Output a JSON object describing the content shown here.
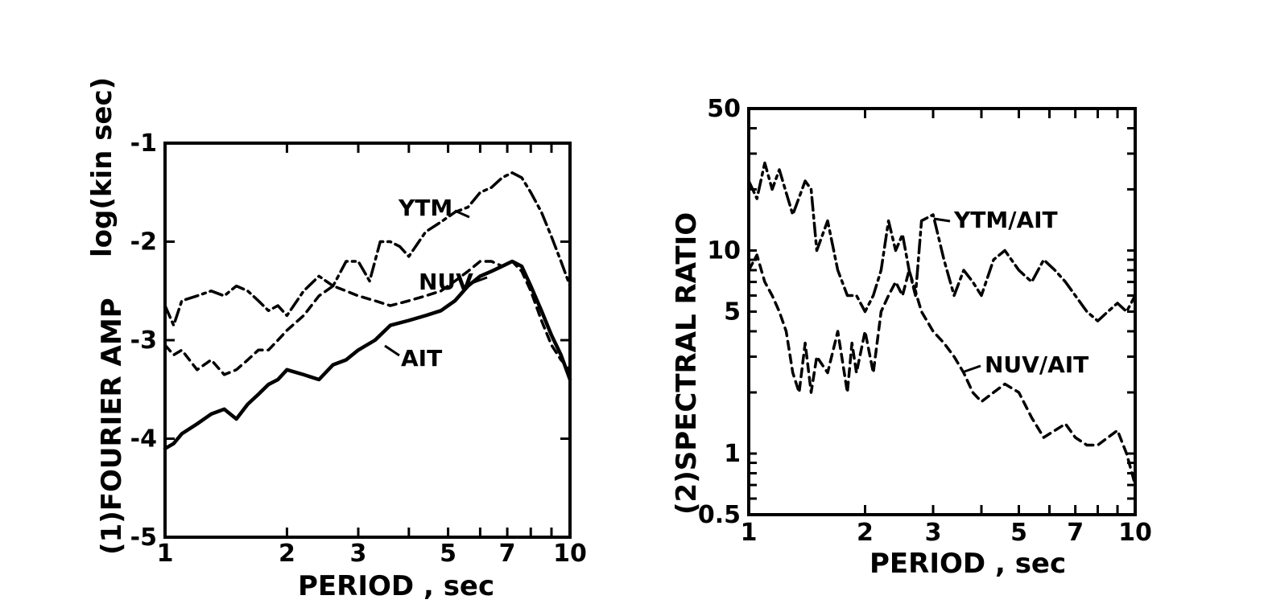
{
  "chart_data": [
    {
      "type": "line",
      "panel_label": "(1)",
      "xlabel": "PERIOD , sec",
      "ylabel": "FOURIER AMP",
      "yunit": "log(kin sec)",
      "xscale": "log",
      "xlim": [
        1,
        10
      ],
      "ylim": [
        -5,
        -1
      ],
      "xticks": [
        1,
        2,
        3,
        5,
        7,
        10
      ],
      "xtick_labels": [
        "1",
        "2",
        "3",
        "5",
        "7",
        "10"
      ],
      "yticks": [
        -5,
        -4,
        -3,
        -2,
        -1
      ],
      "ytick_labels": [
        "-5",
        "-4",
        "-3",
        "-2",
        "-1"
      ],
      "series": [
        {
          "name": "YTM",
          "style": "dash-dot",
          "x": [
            1,
            1.05,
            1.1,
            1.2,
            1.3,
            1.4,
            1.5,
            1.6,
            1.7,
            1.8,
            1.9,
            2.0,
            2.2,
            2.4,
            2.6,
            2.8,
            3.0,
            3.2,
            3.4,
            3.6,
            3.8,
            4.0,
            4.4,
            4.8,
            5.2,
            5.6,
            6.0,
            6.4,
            6.8,
            7.2,
            7.6,
            8.0,
            8.5,
            9.0,
            9.5,
            10
          ],
          "values": [
            -2.65,
            -2.85,
            -2.6,
            -2.55,
            -2.5,
            -2.55,
            -2.45,
            -2.5,
            -2.6,
            -2.7,
            -2.65,
            -2.75,
            -2.5,
            -2.35,
            -2.45,
            -2.2,
            -2.2,
            -2.4,
            -2.0,
            -2.0,
            -2.05,
            -2.15,
            -1.9,
            -1.8,
            -1.7,
            -1.65,
            -1.5,
            -1.45,
            -1.35,
            -1.3,
            -1.35,
            -1.5,
            -1.7,
            -1.95,
            -2.2,
            -2.45
          ]
        },
        {
          "name": "NUV",
          "style": "dashed",
          "x": [
            1,
            1.05,
            1.1,
            1.2,
            1.3,
            1.4,
            1.5,
            1.6,
            1.7,
            1.8,
            1.9,
            2.0,
            2.2,
            2.4,
            2.6,
            2.8,
            3.0,
            3.3,
            3.6,
            4.0,
            4.4,
            4.8,
            5.2,
            5.6,
            6.0,
            6.4,
            6.8,
            7.2,
            7.6,
            8.0,
            8.5,
            9.0,
            9.5,
            10
          ],
          "values": [
            -3.05,
            -3.15,
            -3.1,
            -3.3,
            -3.2,
            -3.35,
            -3.3,
            -3.2,
            -3.1,
            -3.1,
            -3.0,
            -2.9,
            -2.75,
            -2.55,
            -2.45,
            -2.5,
            -2.55,
            -2.6,
            -2.65,
            -2.6,
            -2.55,
            -2.5,
            -2.4,
            -2.3,
            -2.2,
            -2.2,
            -2.25,
            -2.2,
            -2.3,
            -2.5,
            -2.8,
            -3.05,
            -3.2,
            -3.3
          ]
        },
        {
          "name": "AIT",
          "style": "solid",
          "x": [
            1,
            1.05,
            1.1,
            1.2,
            1.3,
            1.4,
            1.5,
            1.6,
            1.7,
            1.8,
            1.9,
            2.0,
            2.2,
            2.4,
            2.6,
            2.8,
            3.0,
            3.3,
            3.6,
            4.0,
            4.4,
            4.8,
            5.2,
            5.6,
            6.0,
            6.4,
            6.8,
            7.2,
            7.6,
            8.0,
            8.5,
            9.0,
            9.5,
            10
          ],
          "values": [
            -4.1,
            -4.05,
            -3.95,
            -3.85,
            -3.75,
            -3.7,
            -3.8,
            -3.65,
            -3.55,
            -3.45,
            -3.4,
            -3.3,
            -3.35,
            -3.4,
            -3.25,
            -3.2,
            -3.1,
            -3.0,
            -2.85,
            -2.8,
            -2.75,
            -2.7,
            -2.6,
            -2.45,
            -2.35,
            -2.3,
            -2.25,
            -2.2,
            -2.25,
            -2.45,
            -2.7,
            -2.95,
            -3.15,
            -3.4
          ]
        }
      ]
    },
    {
      "type": "line",
      "panel_label": "(2)",
      "xlabel": "PERIOD , sec",
      "ylabel": "SPECTRAL  RATIO",
      "xscale": "log",
      "yscale": "log",
      "xlim": [
        1,
        10
      ],
      "ylim": [
        0.5,
        50
      ],
      "xticks": [
        1,
        2,
        3,
        5,
        7,
        10
      ],
      "xtick_labels": [
        "1",
        "2",
        "3",
        "5",
        "7",
        "10"
      ],
      "yticks": [
        0.5,
        1,
        5,
        10,
        50
      ],
      "ytick_labels": [
        "0.5",
        "1",
        "5",
        "10",
        "50"
      ],
      "series": [
        {
          "name": "YTM/AIT",
          "style": "dash-dot",
          "x": [
            1,
            1.05,
            1.1,
            1.15,
            1.2,
            1.3,
            1.4,
            1.45,
            1.5,
            1.6,
            1.7,
            1.8,
            1.9,
            2.0,
            2.1,
            2.2,
            2.3,
            2.4,
            2.5,
            2.6,
            2.7,
            2.8,
            3.0,
            3.2,
            3.4,
            3.6,
            3.8,
            4.0,
            4.3,
            4.6,
            5.0,
            5.4,
            5.8,
            6.2,
            6.6,
            7.0,
            7.5,
            8.0,
            8.5,
            9.0,
            9.5,
            10
          ],
          "values": [
            22,
            18,
            27,
            20,
            25,
            15,
            22,
            20,
            10,
            14,
            8,
            6,
            6,
            5,
            6,
            8,
            14,
            10,
            12,
            8,
            6,
            14,
            15,
            9,
            6,
            8,
            7,
            6,
            9,
            10,
            8,
            7,
            9,
            8,
            7,
            6,
            5,
            4.5,
            5,
            5.5,
            5,
            6
          ]
        },
        {
          "name": "NUV/AIT",
          "style": "dashed",
          "x": [
            1,
            1.05,
            1.1,
            1.15,
            1.2,
            1.25,
            1.3,
            1.35,
            1.4,
            1.45,
            1.5,
            1.6,
            1.7,
            1.8,
            1.85,
            1.9,
            2.0,
            2.1,
            2.2,
            2.3,
            2.4,
            2.5,
            2.6,
            2.8,
            3.0,
            3.2,
            3.4,
            3.6,
            3.8,
            4.0,
            4.3,
            4.6,
            5.0,
            5.4,
            5.8,
            6.2,
            6.6,
            7.0,
            7.5,
            8.0,
            8.5,
            9.0,
            9.5,
            10
          ],
          "values": [
            8,
            9.5,
            7,
            6,
            5,
            4,
            2.5,
            2,
            3.5,
            2,
            3,
            2.5,
            4,
            2,
            3.5,
            2.5,
            4,
            2.5,
            5,
            6,
            7,
            6,
            8,
            5,
            4,
            3.5,
            3,
            2.5,
            2,
            1.8,
            2,
            2.2,
            2,
            1.5,
            1.2,
            1.3,
            1.4,
            1.2,
            1.1,
            1.1,
            1.2,
            1.3,
            1.0,
            0.7
          ]
        }
      ]
    }
  ]
}
